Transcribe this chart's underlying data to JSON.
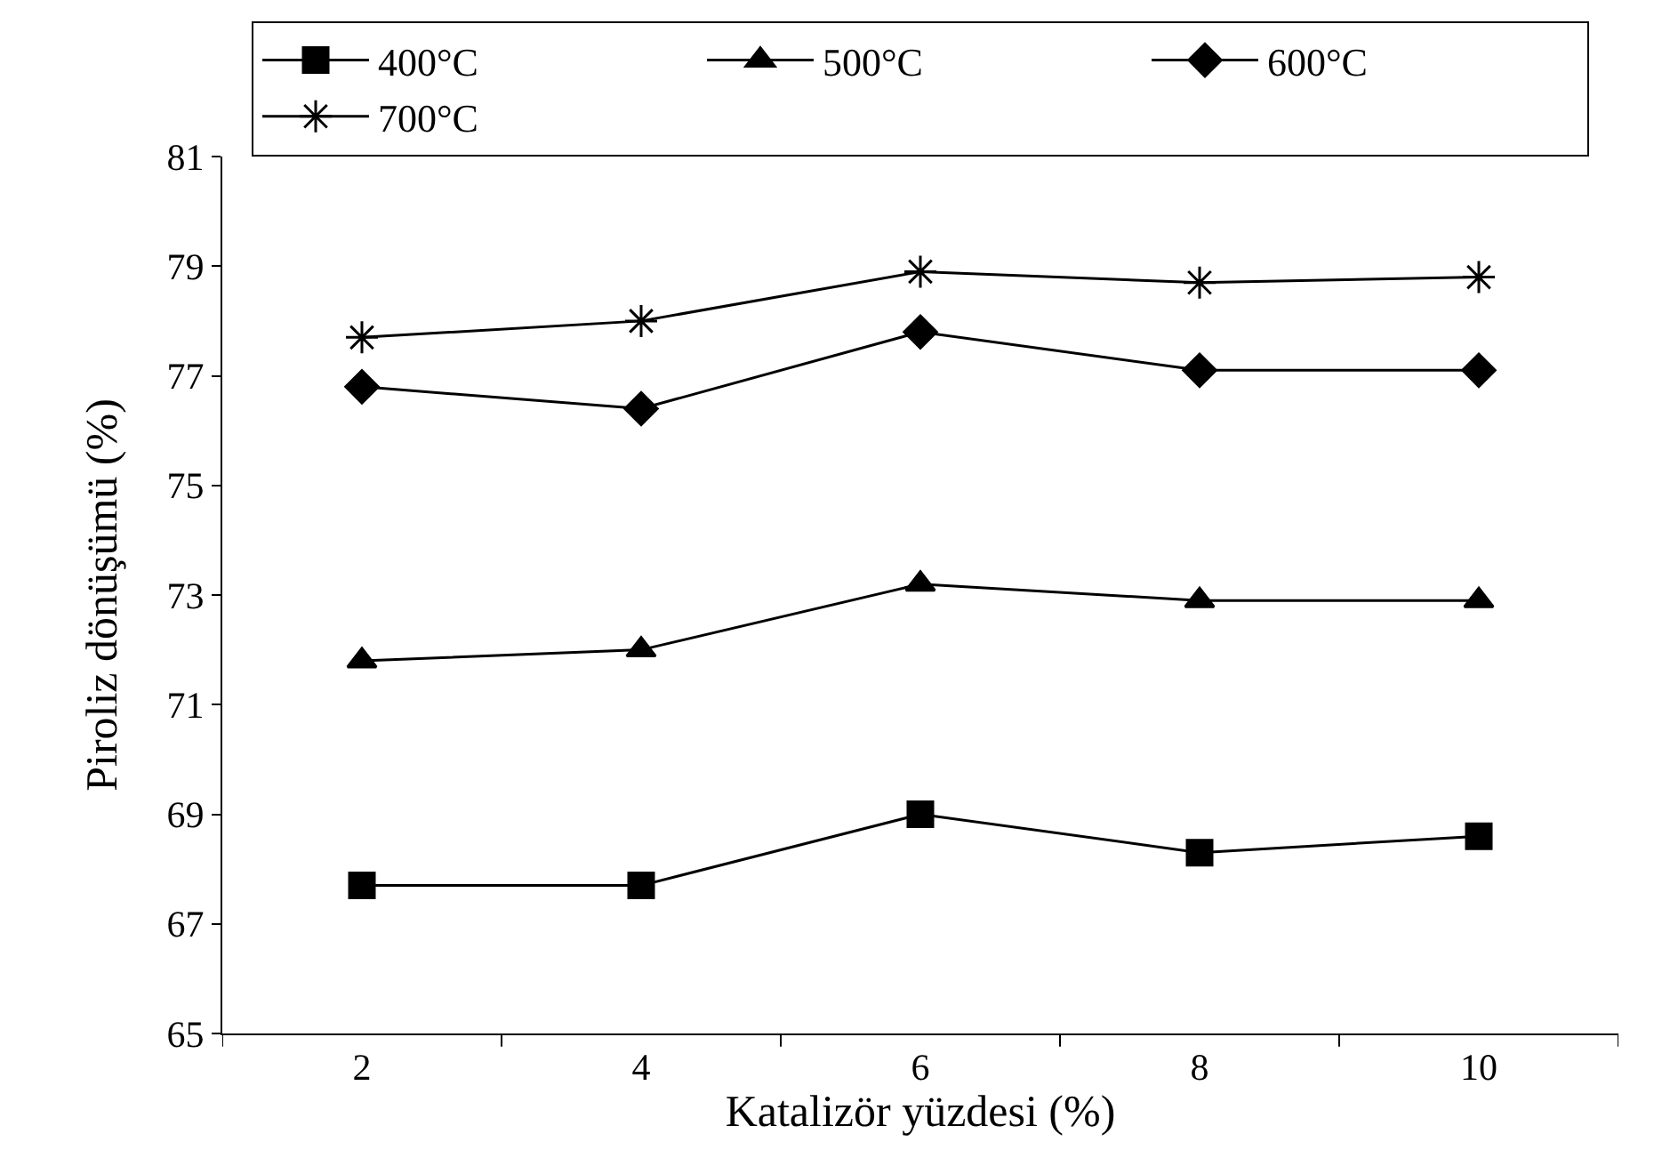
{
  "chart_data": {
    "type": "line",
    "xlabel": "Katalizör yüzdesi (%)",
    "ylabel": "Piroliz dönüşümü (%)",
    "categories": [
      "2",
      "4",
      "6",
      "8",
      "10"
    ],
    "series": [
      {
        "name": "400°C",
        "color": "#000000",
        "marker": "square",
        "values": [
          67.7,
          67.7,
          69.0,
          68.3,
          68.6
        ]
      },
      {
        "name": "500°C",
        "color": "#000000",
        "marker": "triangle",
        "values": [
          71.8,
          72.0,
          73.2,
          72.9,
          72.9
        ]
      },
      {
        "name": "600°C",
        "color": "#000000",
        "marker": "diamond",
        "values": [
          76.8,
          76.4,
          77.8,
          77.1,
          77.1
        ]
      },
      {
        "name": "700°C",
        "color": "#000000",
        "marker": "cross",
        "values": [
          77.7,
          78.0,
          78.9,
          78.7,
          78.8
        ]
      }
    ],
    "ylim": [
      65,
      81
    ],
    "yticks": [
      65,
      67,
      69,
      71,
      73,
      75,
      77,
      79,
      81
    ],
    "legend": "top",
    "line_style": "solid"
  }
}
